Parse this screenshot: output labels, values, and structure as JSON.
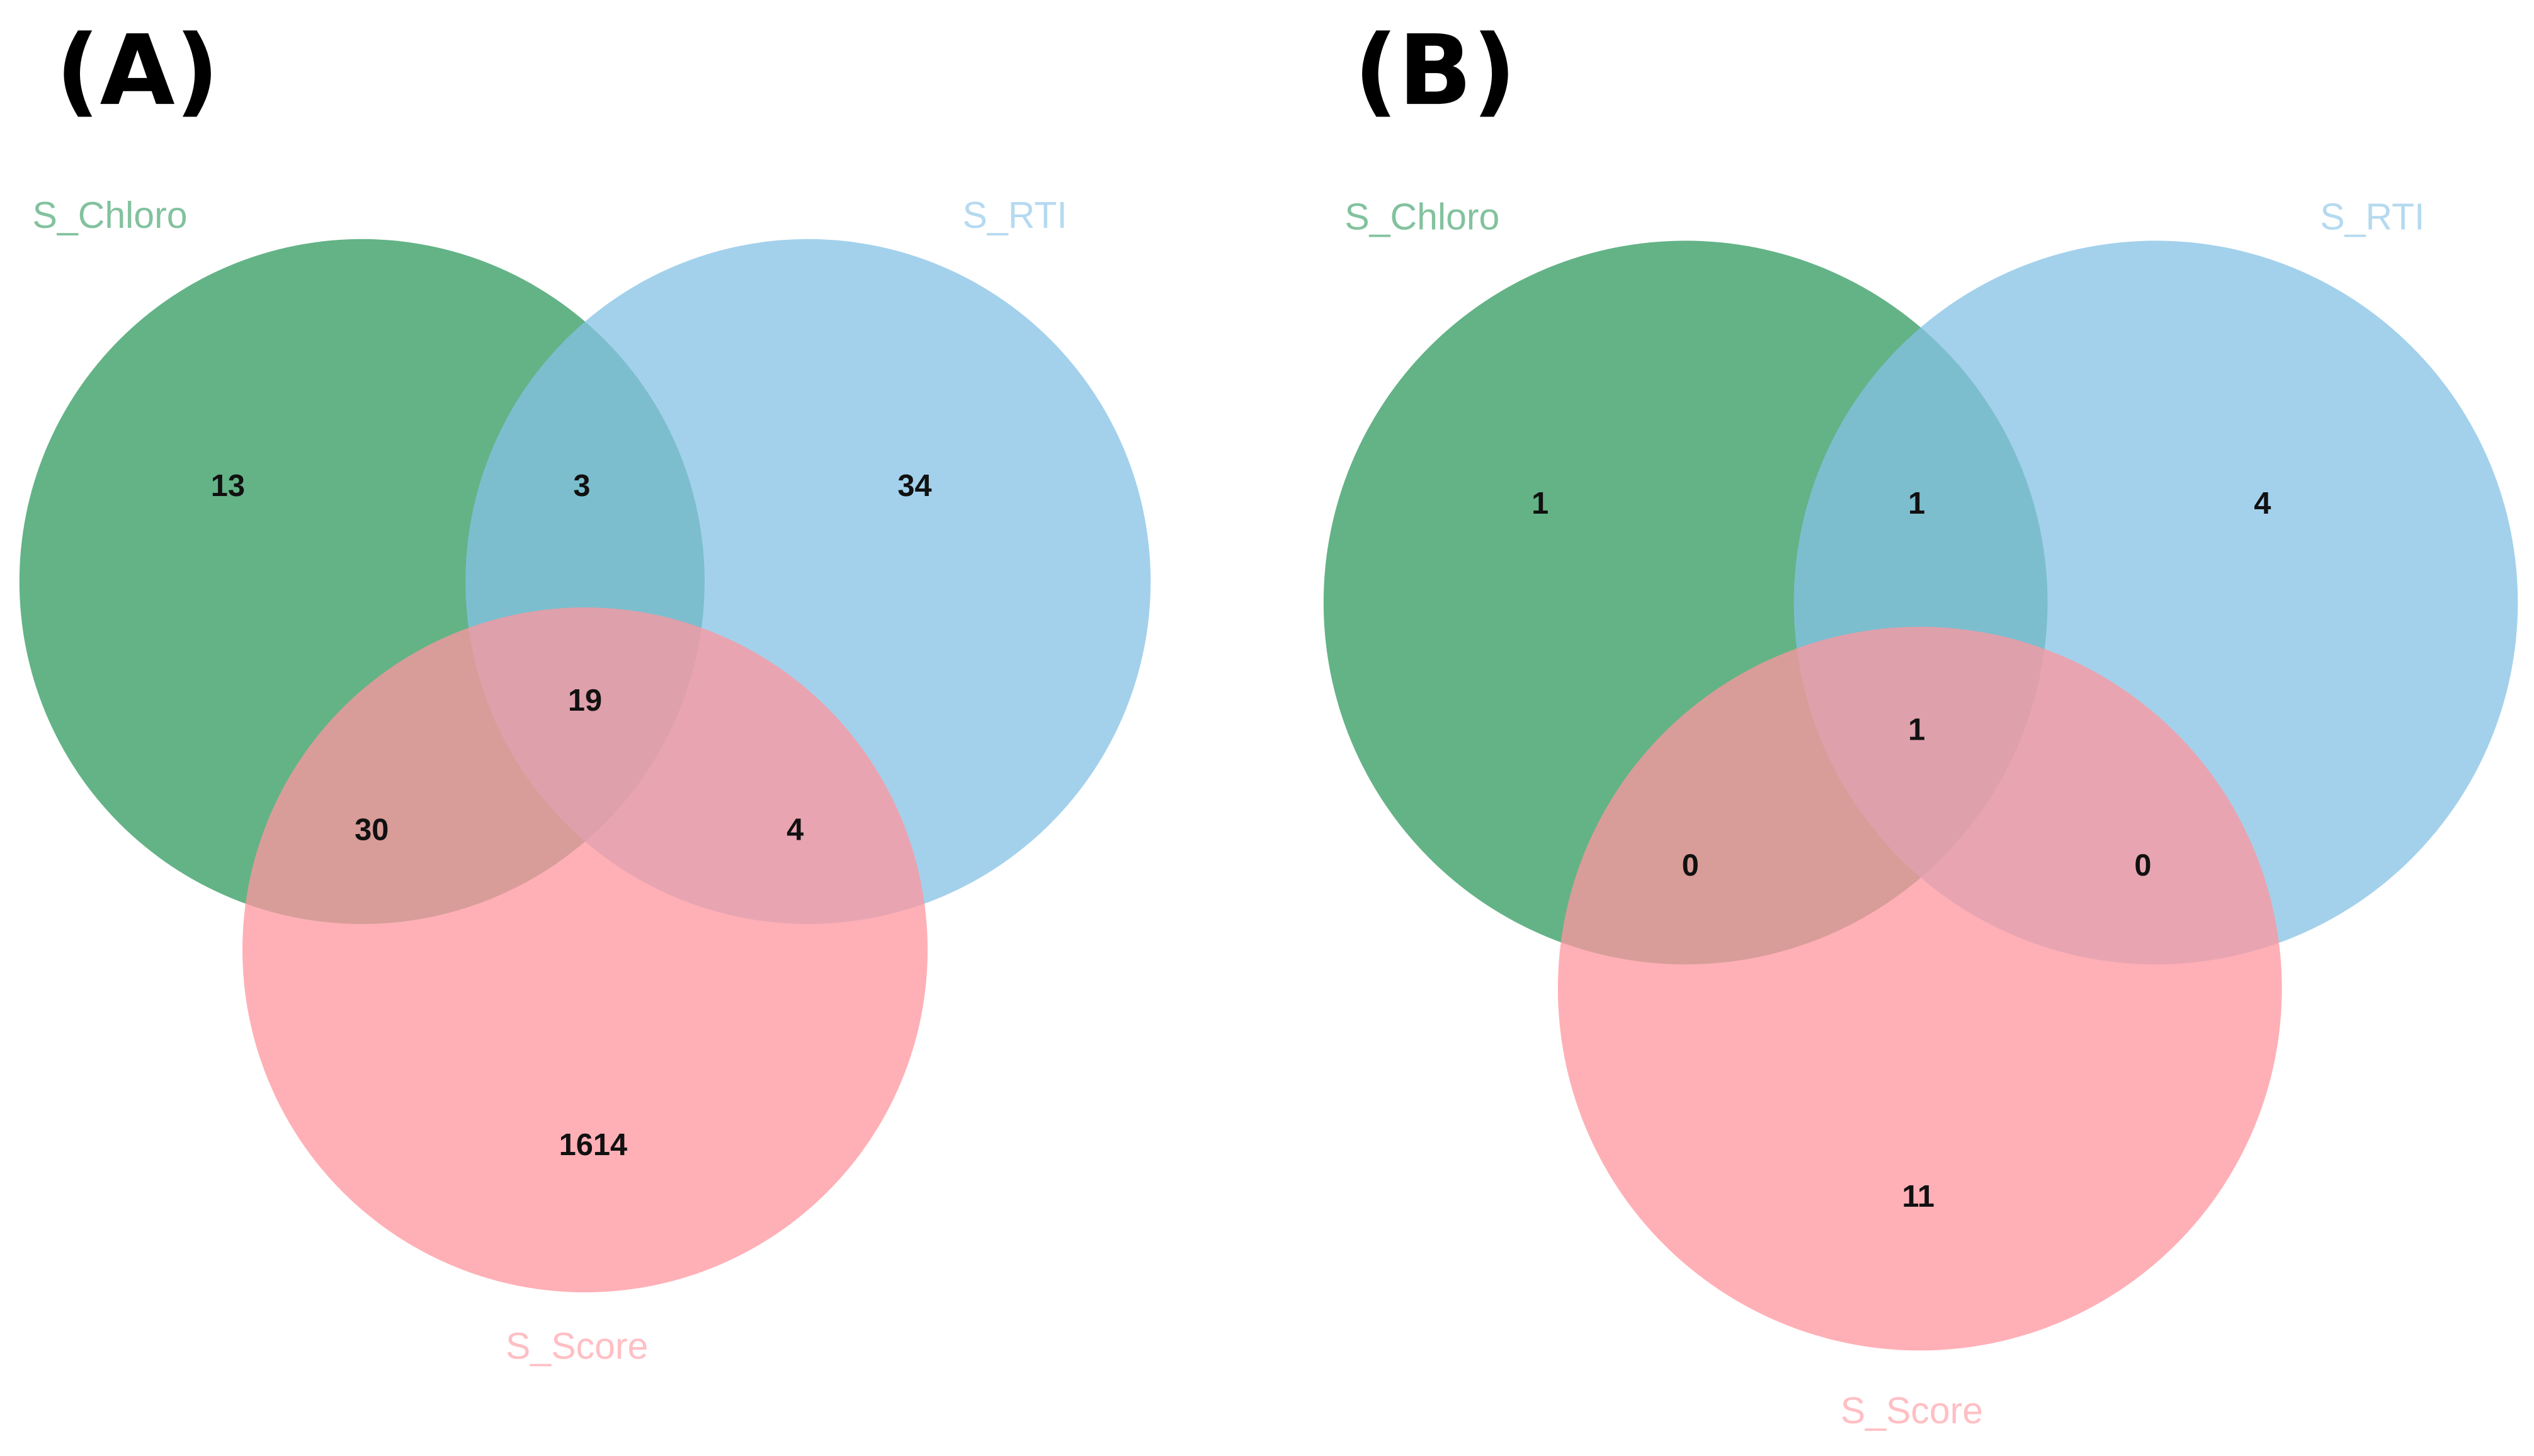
{
  "chart_data": [
    {
      "type": "venn",
      "title": "(A)",
      "series": [
        {
          "name": "S_Chloro",
          "color": "#2f9a5e"
        },
        {
          "name": "S_RTI",
          "color": "#84c1e6"
        },
        {
          "name": "S_Score",
          "color": "#ff959d"
        }
      ],
      "values": [
        13,
        34,
        1614,
        3,
        30,
        4,
        19
      ]
    },
    {
      "type": "venn",
      "title": "(B)",
      "series": [
        {
          "name": "S_Chloro",
          "color": "#2f9a5e"
        },
        {
          "name": "S_RTI",
          "color": "#84c1e6"
        },
        {
          "name": "S_Score",
          "color": "#ff959d"
        }
      ],
      "values": [
        1,
        4,
        11,
        1,
        0,
        0,
        1
      ]
    }
  ]
}
